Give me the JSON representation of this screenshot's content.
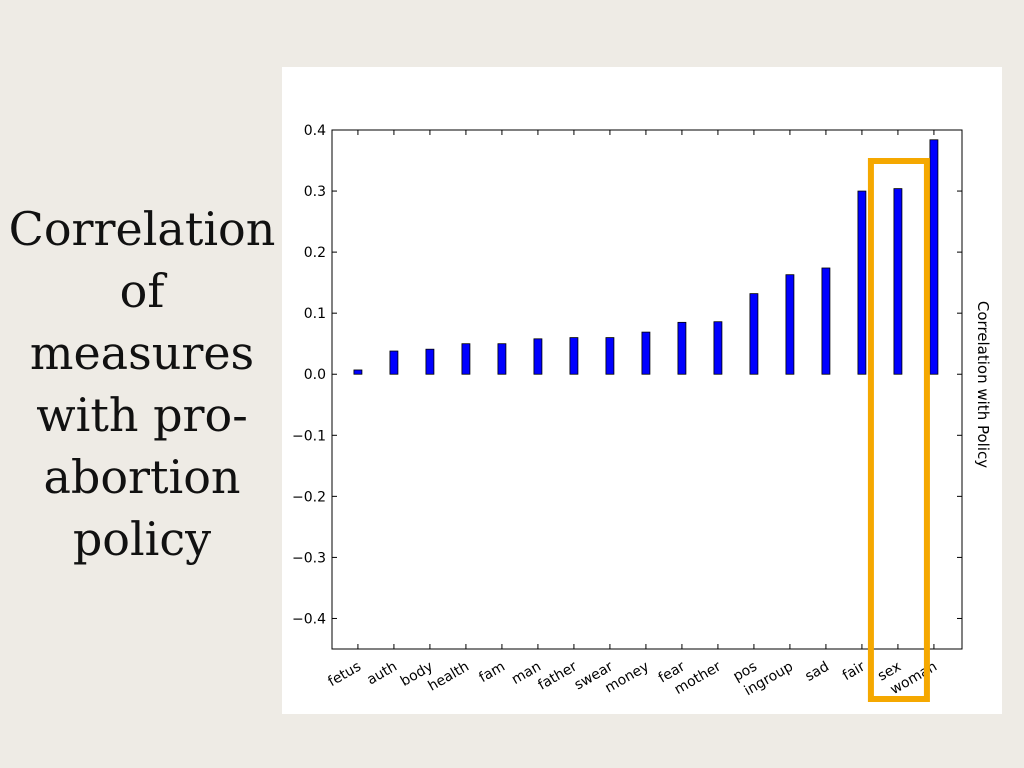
{
  "slide": {
    "title_lines": [
      "Correlation",
      "of",
      "measures",
      "with pro-",
      "abortion",
      "policy"
    ]
  },
  "chart_data": {
    "type": "bar",
    "categories": [
      "fetus",
      "auth",
      "body",
      "health",
      "fam",
      "man",
      "father",
      "swear",
      "money",
      "fear",
      "mother",
      "pos",
      "ingroup",
      "sad",
      "fair",
      "sex",
      "woman"
    ],
    "values": [
      0.007,
      0.038,
      0.041,
      0.05,
      0.05,
      0.058,
      0.06,
      0.06,
      0.069,
      0.085,
      0.086,
      0.132,
      0.163,
      0.174,
      0.3,
      0.304,
      0.384
    ],
    "ylabel": "Correlation with Policy",
    "ylim": [
      -0.45,
      0.4
    ],
    "yticks": [
      0.4,
      0.3,
      0.2,
      0.1,
      0.0,
      -0.1,
      -0.2,
      -0.3,
      -0.4
    ],
    "ytick_labels": [
      "0.4",
      "0.3",
      "0.2",
      "0.1",
      "0.0",
      "−0.1",
      "−0.2",
      "−0.3",
      "−0.4"
    ],
    "bar_color": "#0000ff",
    "highlight": {
      "category": "sex",
      "color": "#f5a800"
    },
    "grid": false
  }
}
